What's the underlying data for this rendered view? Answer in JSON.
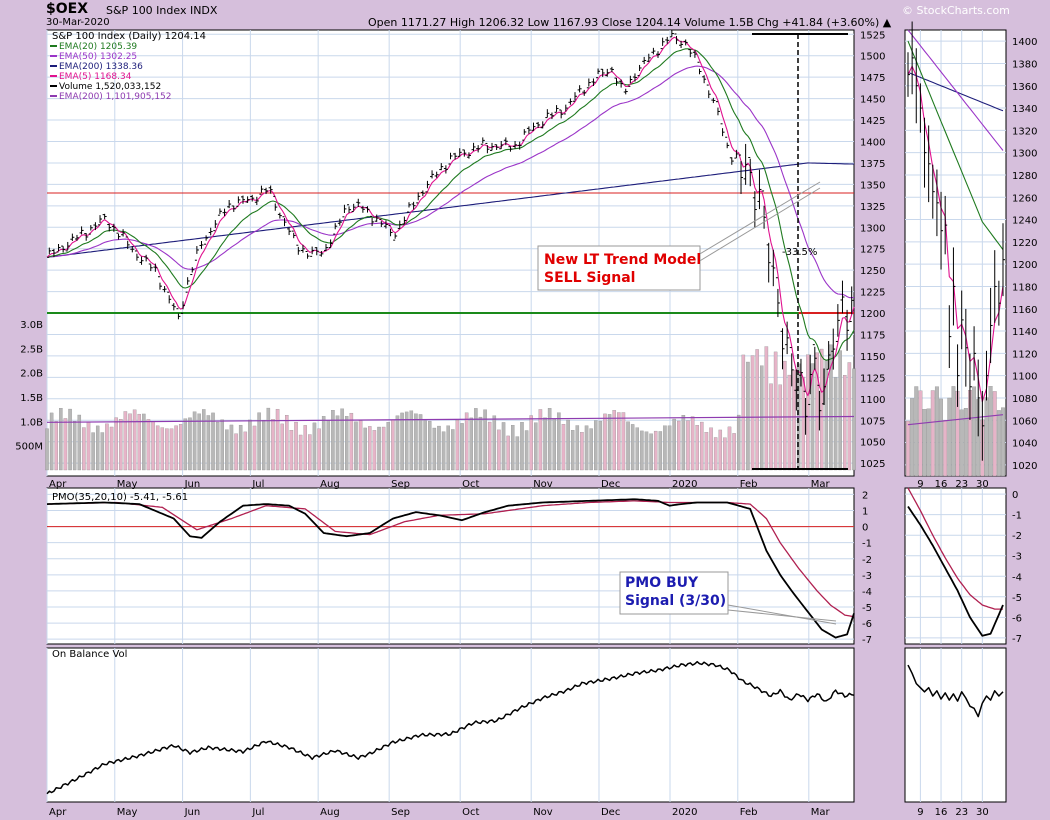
{
  "header": {
    "ticker": "$OEX",
    "name": "S&P 100 Index INDX",
    "date": "30-Mar-2020",
    "ohlc_line": "Open 1171.27   High 1206.32   Low 1167.93   Close 1204.14   Volume 1.5B   Chg +41.84 (+3.60%) ▲",
    "brand": "© StockCharts.com"
  },
  "colors": {
    "background": "#d6bfdc",
    "panel": "#ffffff",
    "grid": "#c9d8ec",
    "price": "#000000",
    "ema20": "#1f7a1f",
    "ema50": "#9b35c8",
    "ema200": "#1d1d7a",
    "ema5": "#e0128f",
    "volume_up": "#b8b8b8",
    "volume_down": "#e6b4c8",
    "vol_ema": "#8e3bb0",
    "hline_red": "#d82020",
    "hline_green": "#1a8a1a",
    "pmo": "#000000",
    "pmo_signal": "#b02050",
    "annotation_red": "#e00000",
    "annotation_blue": "#1c1cb0"
  },
  "chart_data": [
    {
      "type": "line",
      "title": "S&P 100 Index (Daily) 1204.14",
      "legend": [
        {
          "label": "EMA(20) 1205.39",
          "color": "#1f7a1f"
        },
        {
          "label": "EMA(50) 1302.25",
          "color": "#9b35c8"
        },
        {
          "label": "EMA(200) 1338.36",
          "color": "#1d1d7a"
        },
        {
          "label": "EMA(5) 1168.34",
          "color": "#e0128f"
        },
        {
          "label": "Volume 1,520,033,152",
          "color": "#000000"
        },
        {
          "label": "EMA(200) 1,101,905,152",
          "color": "#8e3bb0"
        }
      ],
      "x_months": [
        "Apr",
        "May",
        "Jun",
        "Jul",
        "Aug",
        "Sep",
        "Oct",
        "Nov",
        "Dec",
        "2020",
        "Feb",
        "Mar"
      ],
      "ylim": [
        1010,
        1530
      ],
      "y_ticks": [
        1025,
        1050,
        1075,
        1100,
        1125,
        1150,
        1175,
        1200,
        1225,
        1250,
        1275,
        1300,
        1325,
        1350,
        1375,
        1400,
        1425,
        1450,
        1475,
        1500,
        1525
      ],
      "volume_ticks": [
        "500M",
        "1.0B",
        "1.5B",
        "2.0B",
        "2.5B",
        "3.0B"
      ],
      "volume_tick_values": [
        0.5,
        1.0,
        1.5,
        2.0,
        2.5,
        3.0
      ],
      "close_series": {
        "t": [
          0,
          10,
          17,
          25,
          32,
          40,
          47,
          52,
          57,
          62,
          67,
          72,
          78,
          85,
          90,
          96,
          102,
          108,
          114,
          120,
          125,
          130,
          135,
          140,
          145,
          150,
          156,
          162,
          168,
          175,
          182,
          189,
          195,
          203,
          210,
          217,
          225,
          232,
          238,
          245,
          250,
          255,
          262,
          270,
          277,
          283,
          290,
          296,
          300,
          305,
          310,
          313,
          316,
          319,
          322,
          326,
          329,
          332,
          335,
          338,
          341,
          345
        ],
        "v": [
          1265,
          1283,
          1295,
          1310,
          1290,
          1265,
          1250,
          1220,
          1195,
          1245,
          1282,
          1300,
          1325,
          1330,
          1335,
          1345,
          1310,
          1280,
          1268,
          1272,
          1295,
          1325,
          1325,
          1315,
          1305,
          1290,
          1315,
          1340,
          1360,
          1380,
          1388,
          1395,
          1395,
          1395,
          1415,
          1428,
          1440,
          1460,
          1475,
          1485,
          1455,
          1480,
          1500,
          1522,
          1515,
          1485,
          1440,
          1385,
          1380,
          1355,
          1325,
          1270,
          1230,
          1175,
          1140,
          1120,
          1095,
          1145,
          1100,
          1125,
          1170,
          1204
        ]
      },
      "annotations": [
        {
          "text": "New LT Trend Model",
          "color": "#e00000"
        },
        {
          "text": "SELL Signal",
          "color": "#e00000"
        },
        {
          "text": "-33.5%",
          "color": "#000000"
        }
      ]
    },
    {
      "type": "line",
      "title": "PMO(35,20,10) -5.41, -5.61",
      "ylim": [
        -7.3,
        2.4
      ],
      "y_ticks": [
        -7,
        -6,
        -5,
        -4,
        -3,
        -2,
        -1,
        0,
        1,
        2
      ],
      "pmo": {
        "t": [
          0,
          25,
          40,
          55,
          62,
          67,
          75,
          85,
          95,
          105,
          112,
          120,
          130,
          140,
          150,
          160,
          170,
          180,
          190,
          200,
          215,
          235,
          255,
          265,
          270,
          275,
          282,
          295,
          305,
          312,
          318,
          324,
          330,
          336,
          342,
          347,
          350
        ],
        "v": [
          1.4,
          1.5,
          1.4,
          0.5,
          -0.6,
          -0.7,
          0.3,
          1.3,
          1.4,
          1.3,
          0.8,
          -0.4,
          -0.6,
          -0.4,
          0.5,
          0.9,
          0.7,
          0.4,
          0.9,
          1.3,
          1.5,
          1.6,
          1.7,
          1.6,
          1.3,
          1.4,
          1.5,
          1.5,
          1.1,
          -1.5,
          -3.0,
          -4.2,
          -5.3,
          -6.4,
          -6.9,
          -6.7,
          -5.4
        ]
      },
      "signal": {
        "t": [
          0,
          30,
          50,
          65,
          80,
          95,
          112,
          125,
          140,
          155,
          170,
          190,
          215,
          235,
          255,
          270,
          285,
          295,
          305,
          312,
          318,
          326,
          334,
          340,
          346,
          350
        ],
        "v": [
          1.4,
          1.5,
          1.2,
          -0.2,
          0.5,
          1.3,
          1.1,
          -0.3,
          -0.5,
          0.3,
          0.7,
          0.8,
          1.3,
          1.5,
          1.6,
          1.5,
          1.5,
          1.5,
          1.4,
          0.5,
          -1.0,
          -2.6,
          -4.0,
          -4.9,
          -5.5,
          -5.6
        ]
      },
      "annotations": [
        {
          "text": "PMO BUY",
          "color": "#1c1cb0"
        },
        {
          "text": "Signal (3/30)",
          "color": "#1c1cb0"
        }
      ]
    },
    {
      "type": "line",
      "title": "On Balance Vol",
      "obv": {
        "t": [
          0,
          15,
          25,
          40,
          55,
          62,
          70,
          85,
          95,
          105,
          115,
          125,
          135,
          140,
          150,
          162,
          175,
          185,
          195,
          205,
          215,
          225,
          232,
          245,
          255,
          265,
          275,
          283,
          290,
          296,
          302,
          306,
          310,
          314,
          318,
          322,
          326,
          330,
          334,
          338,
          342,
          346,
          350
        ],
        "v": [
          0.05,
          0.22,
          0.34,
          0.42,
          0.52,
          0.45,
          0.5,
          0.46,
          0.56,
          0.5,
          0.4,
          0.47,
          0.4,
          0.44,
          0.55,
          0.62,
          0.63,
          0.74,
          0.76,
          0.88,
          0.98,
          1.05,
          1.12,
          1.17,
          1.22,
          1.25,
          1.3,
          1.32,
          1.3,
          1.25,
          1.14,
          1.1,
          1.05,
          1.0,
          1.05,
          0.96,
          1.02,
          0.96,
          1.02,
          0.94,
          1.05,
          1.0,
          1.02
        ]
      },
      "x_months": [
        "Apr",
        "May",
        "Jun",
        "Jul",
        "Aug",
        "Sep",
        "Oct",
        "Nov",
        "Dec",
        "2020",
        "Feb",
        "Mar"
      ]
    },
    {
      "type": "line",
      "title": "",
      "x_days": [
        "9",
        "16",
        "23",
        "30"
      ],
      "price_ylim": [
        1010,
        1410
      ],
      "price_ticks": [
        1020,
        1040,
        1060,
        1080,
        1100,
        1120,
        1140,
        1160,
        1180,
        1200,
        1220,
        1240,
        1260,
        1280,
        1300,
        1320,
        1340,
        1360,
        1380,
        1400
      ],
      "close": {
        "t": [
          0,
          1,
          2,
          3,
          4,
          5,
          6,
          7,
          8,
          9,
          10,
          11,
          12,
          13,
          14,
          15,
          16,
          17,
          18,
          19,
          20,
          21,
          22,
          23
        ],
        "v": [
          1370,
          1385,
          1360,
          1340,
          1300,
          1290,
          1265,
          1255,
          1230,
          1235,
          1135,
          1180,
          1100,
          1150,
          1125,
          1090,
          1120,
          1080,
          1055,
          1100,
          1145,
          1180,
          1165,
          1204
        ]
      },
      "pmo_ylim": [
        -7.3,
        0.3
      ],
      "pmo_ticks": [
        0,
        -1,
        -2,
        -3,
        -4,
        -5,
        -6,
        -7
      ],
      "pmo": {
        "t": [
          0,
          3,
          6,
          9,
          12,
          15,
          18,
          20,
          23
        ],
        "v": [
          -0.6,
          -1.5,
          -2.5,
          -3.6,
          -4.7,
          -6.0,
          -6.9,
          -6.8,
          -5.4
        ]
      },
      "signal": {
        "t": [
          0,
          3,
          6,
          9,
          12,
          15,
          18,
          21,
          23
        ],
        "v": [
          0.3,
          -0.8,
          -2.0,
          -3.1,
          -4.1,
          -4.9,
          -5.4,
          -5.6,
          -5.6
        ]
      }
    }
  ],
  "labels": {
    "sell1": "New LT Trend Model",
    "sell2": "SELL Signal",
    "drop": "-33.5%",
    "pmo1": "PMO BUY",
    "pmo2": "Signal (3/30)"
  }
}
